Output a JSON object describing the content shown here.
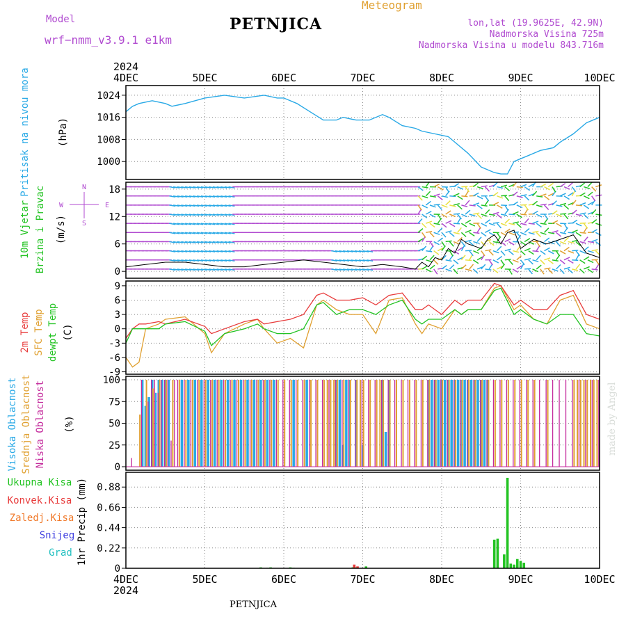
{
  "header": {
    "title": "PETNJICA",
    "subtitle": "Meteogram",
    "model_label": "Model",
    "model_name": "wrf−nmm_v3.9.1  e1km",
    "coords": "lon,lat (19.9625E, 42.9N)",
    "elevation": "Nadmorska Visina 725m",
    "model_elevation": "Nadmorska Visina u modelu 843.716m",
    "credit": "made by Angel",
    "footer_title": "PETNJICA"
  },
  "time_axis": {
    "year": "2024",
    "ticks": [
      "4DEC",
      "5DEC",
      "6DEC",
      "7DEC",
      "8DEC",
      "9DEC",
      "10DEC"
    ]
  },
  "colors": {
    "pressure": "#29a9e6",
    "wind_label": "#22c322",
    "temp2m": "#e83c3c",
    "sfc": "#e0a030",
    "dewpt": "#22c322",
    "high": "#29a9e6",
    "mid": "#e0a030",
    "low": "#c42a9c",
    "total": "#22c322",
    "conv": "#e83c3c",
    "frz": "#f07828",
    "snow": "#4040e0",
    "grad": "#22c0c0",
    "purple": "#b04ad0"
  },
  "chart_data": [
    {
      "type": "line",
      "panel": "pressure",
      "ylabel": [
        "Pritisak na nivou mora",
        "(hPa)"
      ],
      "yticks": [
        1000,
        1008,
        1016,
        1024
      ],
      "ylim": [
        993.5,
        1027.5
      ],
      "x": [
        0,
        2,
        4,
        8,
        12,
        14,
        18,
        24,
        30,
        36,
        42,
        46,
        48,
        52,
        56,
        60,
        64,
        66,
        70,
        74,
        78,
        80,
        84,
        88,
        90,
        94,
        98,
        100,
        104,
        108,
        112,
        114,
        116,
        118,
        120,
        122,
        126,
        130,
        132,
        136,
        140,
        144
      ],
      "series": [
        {
          "name": "Pritisak na nivou mora",
          "values": [
            1018,
            1020,
            1021,
            1022,
            1021,
            1020,
            1021,
            1023,
            1024,
            1023,
            1024,
            1023,
            1023,
            1021,
            1018,
            1015,
            1015,
            1016,
            1015,
            1015,
            1017,
            1016,
            1013,
            1012,
            1011,
            1010,
            1009,
            1007,
            1003,
            998,
            996,
            995.5,
            995.5,
            1000,
            1001,
            1002,
            1004,
            1005,
            1007,
            1010,
            1014,
            1016
          ]
        }
      ]
    },
    {
      "type": "line",
      "panel": "wind",
      "ylabel": [
        "10m Vjetar",
        "Brzina i Pravac",
        "(m/s)"
      ],
      "compass": [
        "N",
        "W",
        "E",
        "S"
      ],
      "yticks": [
        0,
        6,
        12,
        18
      ],
      "ylim": [
        -1.5,
        19.5
      ],
      "x": [
        0,
        6,
        12,
        18,
        24,
        30,
        36,
        42,
        48,
        54,
        60,
        66,
        72,
        78,
        84,
        88,
        90,
        92,
        94,
        96,
        98,
        100,
        102,
        104,
        108,
        110,
        112,
        114,
        116,
        118,
        120,
        124,
        128,
        132,
        136,
        140,
        144
      ],
      "series": [
        {
          "name": "10m Vjetar",
          "values": [
            1,
            1.5,
            2,
            2,
            1.5,
            1,
            1,
            1.5,
            2,
            2.5,
            2,
            1.5,
            1,
            1.5,
            1,
            0.5,
            2,
            1,
            3,
            2.5,
            5,
            4,
            7,
            6,
            5,
            7,
            8,
            6,
            8.5,
            9,
            5,
            7,
            6,
            7,
            8,
            4,
            3
          ]
        }
      ]
    },
    {
      "type": "line",
      "panel": "temperature",
      "ylabel": [
        "2m Temp",
        "SFC Temp",
        "dewpt Temp",
        "(C)"
      ],
      "yticks": [
        -9,
        -6,
        -3,
        0,
        3,
        6,
        9
      ],
      "ylim": [
        -9.5,
        10
      ],
      "x": [
        0,
        2,
        4,
        6,
        10,
        12,
        18,
        24,
        26,
        30,
        36,
        40,
        42,
        46,
        50,
        54,
        58,
        60,
        64,
        68,
        72,
        76,
        80,
        84,
        88,
        90,
        92,
        96,
        100,
        102,
        104,
        108,
        112,
        114,
        118,
        120,
        124,
        128,
        132,
        136,
        140,
        144
      ],
      "series": [
        {
          "name": "2m Temp",
          "values": [
            -2,
            0,
            1,
            1,
            1.5,
            1,
            2,
            0.5,
            -1,
            0,
            1.5,
            2,
            1,
            1.5,
            2,
            3,
            7,
            7.5,
            6,
            6,
            6.5,
            5,
            7,
            7.5,
            4,
            4,
            5,
            3,
            6,
            5,
            6,
            6,
            9.5,
            9,
            5,
            6,
            4,
            4,
            7,
            8,
            3,
            2
          ]
        },
        {
          "name": "SFC Temp",
          "values": [
            -6,
            -8,
            -7,
            0,
            1,
            2,
            2.5,
            -1,
            -5,
            -1,
            1,
            2,
            0,
            -3,
            -2,
            -4,
            5,
            6,
            4,
            3,
            3,
            -1,
            6,
            6.5,
            1,
            -1,
            1,
            0,
            4,
            3,
            4,
            4,
            8.5,
            9,
            4,
            5,
            2,
            1,
            6,
            7,
            1,
            0
          ]
        },
        {
          "name": "dewpt Temp",
          "values": [
            -3,
            0,
            0,
            0,
            0,
            1,
            1.5,
            -0.5,
            -3.5,
            -1,
            0,
            1,
            0,
            -1,
            -1,
            0,
            5,
            5.5,
            3,
            4,
            4,
            3,
            5,
            6,
            2,
            1,
            2,
            2,
            4,
            3,
            4,
            4,
            8,
            8.5,
            3,
            4,
            2,
            1,
            3,
            3,
            -1,
            -1.5
          ]
        }
      ]
    },
    {
      "type": "bar",
      "panel": "cloud",
      "ylabel": [
        "Visoka Oblacnost",
        "Srednja Oblacnost",
        "Niska Oblacnost",
        "(%)"
      ],
      "yticks": [
        0,
        25,
        50,
        75,
        100
      ],
      "ylim": [
        -4,
        104
      ],
      "series": [
        {
          "name": "Visoka Oblacnost",
          "x": [
            5,
            6,
            7,
            8,
            9,
            10,
            11,
            12,
            13,
            17,
            19,
            21,
            23,
            25,
            27,
            29,
            31,
            33,
            35,
            37,
            39,
            41,
            43,
            45,
            51,
            55,
            64,
            65,
            66,
            67,
            68,
            70,
            72,
            78,
            79,
            80,
            92,
            93,
            94,
            95,
            96,
            97,
            98,
            99,
            100,
            101,
            102,
            103,
            104,
            105,
            106,
            107,
            108,
            109,
            110
          ],
          "values": [
            100,
            70,
            80,
            100,
            85,
            100,
            100,
            100,
            100,
            100,
            100,
            100,
            100,
            100,
            100,
            100,
            100,
            100,
            100,
            100,
            100,
            100,
            100,
            100,
            100,
            100,
            100,
            100,
            25,
            100,
            100,
            100,
            25,
            100,
            40,
            100,
            100,
            100,
            100,
            100,
            100,
            100,
            100,
            100,
            100,
            100,
            100,
            100,
            100,
            100,
            100,
            100,
            100,
            100,
            100
          ]
        },
        {
          "name": "Srednja Oblacnost",
          "x": [
            4,
            6,
            8,
            10,
            12,
            14,
            16,
            18,
            20,
            22,
            24,
            26,
            28,
            30,
            32,
            34,
            36,
            38,
            40,
            42,
            44,
            46,
            48,
            50,
            52,
            54,
            56,
            58,
            60,
            61,
            62,
            63,
            64,
            66,
            68,
            70,
            71,
            72,
            74,
            76,
            77,
            78,
            80,
            82,
            84,
            86,
            88,
            90,
            92,
            94,
            96,
            98,
            100,
            102,
            104,
            106,
            108,
            110,
            112,
            114,
            116,
            118,
            120,
            122,
            124,
            128,
            136,
            137,
            138,
            139,
            140,
            141,
            142,
            143
          ],
          "values": [
            60,
            100,
            90,
            100,
            100,
            100,
            100,
            100,
            100,
            100,
            100,
            100,
            100,
            100,
            100,
            100,
            100,
            100,
            100,
            100,
            100,
            100,
            100,
            100,
            100,
            100,
            100,
            100,
            100,
            100,
            100,
            100,
            100,
            100,
            100,
            100,
            100,
            100,
            100,
            100,
            100,
            100,
            100,
            100,
            100,
            100,
            100,
            100,
            100,
            100,
            100,
            100,
            100,
            100,
            100,
            100,
            100,
            100,
            100,
            100,
            100,
            100,
            100,
            100,
            100,
            100,
            100,
            100,
            100,
            100,
            100,
            100,
            100,
            100
          ]
        },
        {
          "name": "Niska Oblacnost",
          "x": [
            2,
            5,
            7,
            8,
            9,
            10,
            11,
            12,
            13,
            14,
            15,
            16,
            18,
            20,
            22,
            24,
            26,
            28,
            30,
            32,
            34,
            36,
            38,
            40,
            42,
            44,
            46,
            48,
            50,
            52,
            54,
            56,
            58,
            60,
            62,
            64,
            66,
            68,
            70,
            72,
            74,
            76,
            78,
            80,
            82,
            84,
            86,
            88,
            90,
            92,
            94,
            96,
            98,
            100,
            102,
            104,
            106,
            108,
            110,
            112,
            114,
            116,
            118,
            120,
            122,
            124,
            126,
            128,
            130,
            132,
            134,
            136,
            138,
            140,
            142,
            144
          ],
          "values": [
            10,
            100,
            75,
            100,
            100,
            85,
            100,
            100,
            100,
            30,
            100,
            100,
            100,
            100,
            100,
            100,
            100,
            100,
            100,
            100,
            100,
            100,
            100,
            100,
            100,
            100,
            100,
            100,
            100,
            100,
            100,
            100,
            100,
            100,
            100,
            100,
            100,
            100,
            100,
            100,
            100,
            100,
            100,
            100,
            100,
            100,
            100,
            100,
            100,
            100,
            100,
            100,
            100,
            100,
            100,
            100,
            100,
            100,
            100,
            100,
            100,
            100,
            100,
            100,
            100,
            100,
            100,
            100,
            100,
            100,
            100,
            100,
            100,
            100,
            100,
            100
          ]
        }
      ]
    },
    {
      "type": "bar",
      "panel": "precip",
      "ylabel": [
        "1hr Precip (mm)"
      ],
      "legend": [
        "Ukupna Kisa",
        "Konvek.Kisa",
        "Zaledj.Kisa",
        "Snijeg",
        "Grad"
      ],
      "yticks": [
        0,
        0.22,
        0.44,
        0.66,
        0.88
      ],
      "ylim": [
        0,
        1.04
      ],
      "series": [
        {
          "name": "Ukupna Kisa",
          "x": [
            41,
            43,
            44,
            50,
            51,
            69,
            70,
            73,
            112,
            113,
            115,
            116,
            117,
            118,
            119,
            120,
            121
          ],
          "values": [
            0.01,
            0.005,
            0.01,
            0.01,
            0.005,
            0.01,
            0.01,
            0.02,
            0.31,
            0.32,
            0.15,
            0.98,
            0.05,
            0.04,
            0.1,
            0.08,
            0.06
          ]
        },
        {
          "name": "Konvek.Kisa",
          "x": [
            69,
            70
          ],
          "values": [
            0.04,
            0.02
          ]
        },
        {
          "name": "Zaledj.Kisa",
          "x": [],
          "values": []
        },
        {
          "name": "Snijeg",
          "x": [],
          "values": []
        },
        {
          "name": "Grad",
          "x": [],
          "values": []
        }
      ]
    }
  ]
}
